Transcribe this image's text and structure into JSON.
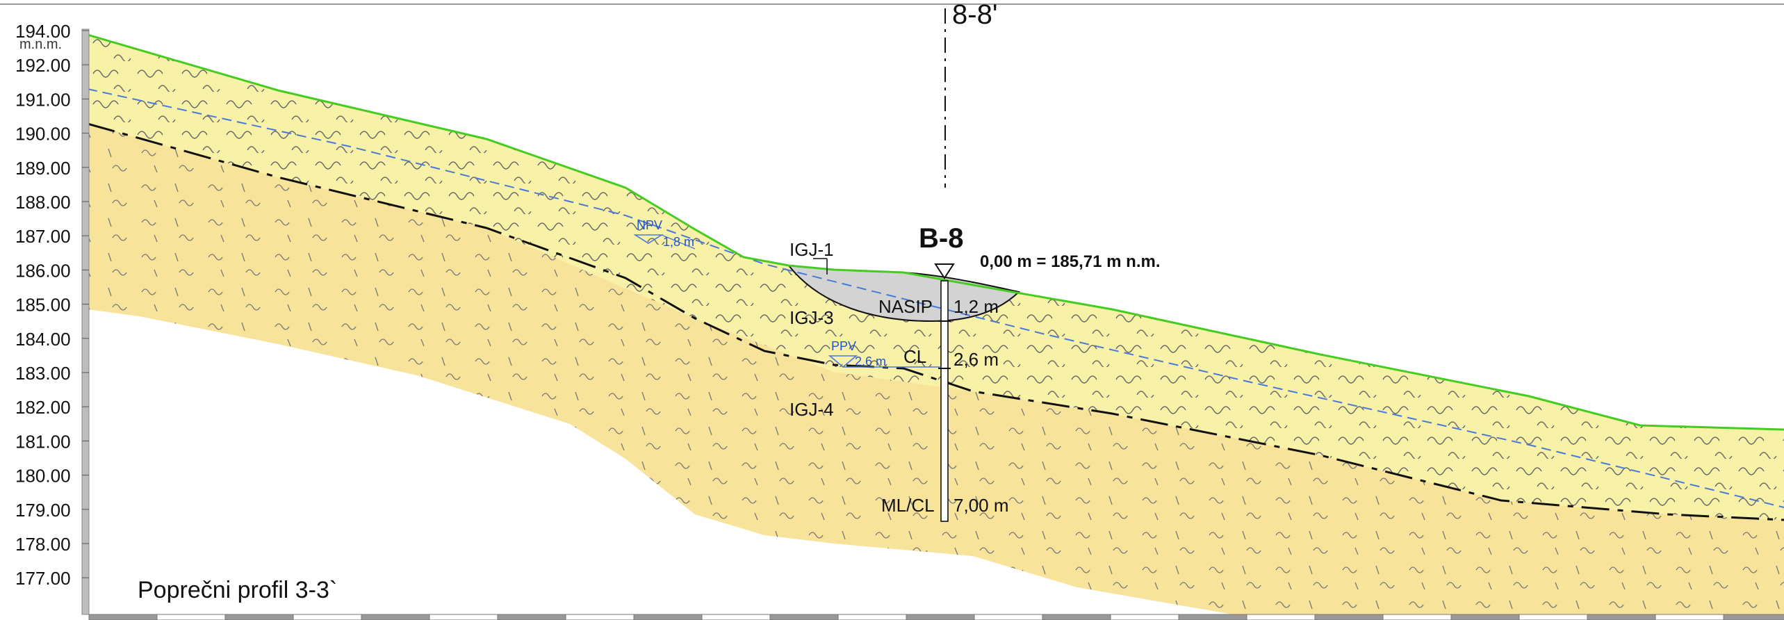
{
  "axis": {
    "labels": [
      "194.00",
      "192.00",
      "191.00",
      "190.00",
      "189.00",
      "188.00",
      "187.00",
      "186.00",
      "185.00",
      "184.00",
      "183.00",
      "182.00",
      "181.00",
      "180.00",
      "179.00",
      "178.00",
      "177.00"
    ],
    "unit": "m.n.m."
  },
  "section_line": {
    "label": "8-8'"
  },
  "borehole": {
    "name": "B-8",
    "elevation_label": "0,00 m = 185,71 m n.m.",
    "layers": [
      {
        "soil": "NASIP",
        "depth": "1,2 m"
      },
      {
        "soil": "CL",
        "depth": "2,6 m"
      },
      {
        "soil": "ML/CL",
        "depth": "7,00 m"
      }
    ]
  },
  "units": {
    "igj1": "IGJ-1",
    "igj3": "IGJ-3",
    "igj4": "IGJ-4"
  },
  "water": {
    "npv_label": "NPV",
    "npv_depth": "1,8 m",
    "ppv_label": "PPV",
    "ppv_depth": "2,6 m"
  },
  "profile_title": "Poprečni profil 3-3`",
  "colors": {
    "upper_layer": "#f8f1a8",
    "lower_layer": "#f7e39a",
    "fill_grey": "#d3d3d3",
    "surface_line": "#44cc22",
    "water_line": "#4a78d8",
    "boundary_line": "#111111"
  }
}
